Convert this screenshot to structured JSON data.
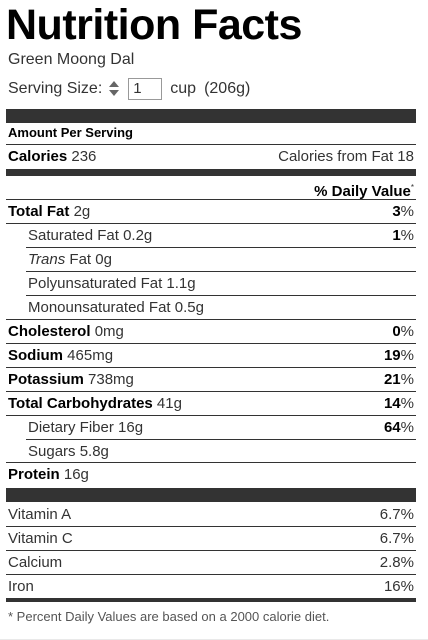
{
  "label": {
    "title": "Nutrition Facts",
    "recipe_name": "Green Moong Dal",
    "serving_size_label": "Serving Size:",
    "serving_quantity": "1",
    "serving_unit": "cup",
    "serving_weight": "(206g)",
    "amount_per_serving": "Amount Per Serving",
    "calories_label": "Calories",
    "calories_value": "236",
    "calories_from_fat": "Calories from Fat 18",
    "daily_value_header": "% Daily Value",
    "daily_value_mark": "*"
  },
  "nutrients": [
    {
      "name": "Total Fat",
      "amount": "2g",
      "dv": "3",
      "bold": true
    },
    {
      "name": "Saturated Fat",
      "amount": "0.2g",
      "dv": "1"
    },
    {
      "prefix": "Trans",
      "name": " Fat",
      "amount": "0g"
    },
    {
      "name": "Polyunsaturated Fat",
      "amount": "1.1g"
    },
    {
      "name": "Monounsaturated Fat",
      "amount": "0.5g"
    },
    {
      "name": "Cholesterol",
      "amount": "0mg",
      "dv": "0",
      "bold": true
    },
    {
      "name": "Sodium",
      "amount": "465mg",
      "dv": "19",
      "bold": true
    },
    {
      "name": "Potassium",
      "amount": "738mg",
      "dv": "21",
      "bold": true
    },
    {
      "name": "Total Carbohydrates",
      "amount": "41g",
      "dv": "14",
      "bold": true
    },
    {
      "name": "Dietary Fiber",
      "amount": "16g",
      "dv": "64"
    },
    {
      "name": "Sugars",
      "amount": "5.8g"
    },
    {
      "name": "Protein",
      "amount": "16g",
      "bold": true
    }
  ],
  "percent_sign": "%",
  "vitamins": [
    {
      "name": "Vitamin A",
      "dv": "6.7%"
    },
    {
      "name": "Vitamin C",
      "dv": "6.7%"
    },
    {
      "name": "Calcium",
      "dv": "2.8%"
    },
    {
      "name": "Iron",
      "dv": "16%"
    }
  ],
  "footnote": "* Percent Daily Values are based on a 2000 calorie diet."
}
